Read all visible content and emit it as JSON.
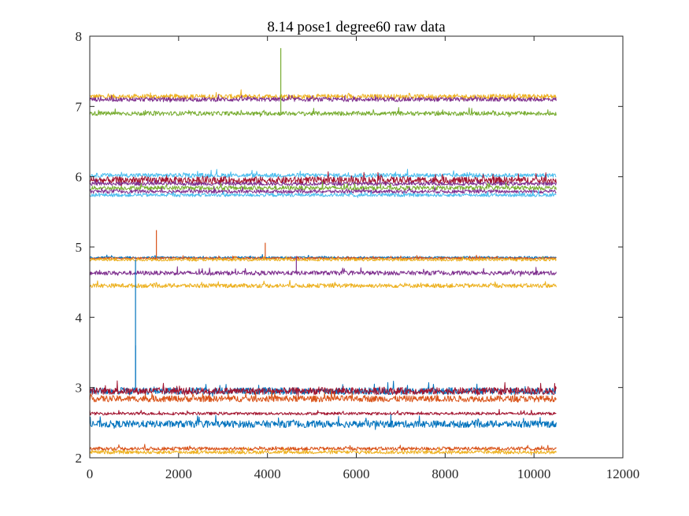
{
  "chart_data": {
    "type": "line",
    "title": "8.14 pose1  degree60 raw data",
    "xlabel": "",
    "ylabel": "",
    "xlim": [
      0,
      12000
    ],
    "ylim": [
      2,
      8
    ],
    "xticks": [
      0,
      2000,
      4000,
      6000,
      8000,
      10000,
      12000
    ],
    "yticks": [
      2,
      3,
      4,
      5,
      6,
      7,
      8
    ],
    "x_tick_labels": [
      "0",
      "2000",
      "4000",
      "6000",
      "8000",
      "10000",
      "12000"
    ],
    "y_tick_labels": [
      "2",
      "3",
      "4",
      "5",
      "6",
      "7",
      "8"
    ],
    "grid": false,
    "legend": "none",
    "x_range": [
      1,
      10500
    ],
    "series": [
      {
        "color": "#EDB120",
        "level": 7.14,
        "noise": 0.035
      },
      {
        "color": "#7E2F8E",
        "level": 7.1,
        "noise": 0.03
      },
      {
        "color": "#77AC30",
        "level": 6.9,
        "noise": 0.03,
        "spikes": [
          {
            "x": 4300,
            "y": 7.83
          }
        ]
      },
      {
        "color": "#4DBEEE",
        "level": 6.02,
        "noise": 0.03
      },
      {
        "color": "#A2142F",
        "level": 5.95,
        "noise": 0.05
      },
      {
        "color": "#7E2F8E",
        "level": 5.9,
        "noise": 0.025
      },
      {
        "color": "#77AC30",
        "level": 5.84,
        "noise": 0.03
      },
      {
        "color": "#7E2F8E",
        "level": 5.79,
        "noise": 0.025
      },
      {
        "color": "#4DBEEE",
        "level": 5.74,
        "noise": 0.025
      },
      {
        "color": "#0072BD",
        "level": 4.85,
        "noise": 0.015
      },
      {
        "color": "#D95319",
        "level": 4.84,
        "noise": 0.015,
        "spikes": [
          {
            "x": 1500,
            "y": 5.24
          },
          {
            "x": 3950,
            "y": 5.06
          }
        ]
      },
      {
        "color": "#EDB120",
        "level": 4.82,
        "noise": 0.02
      },
      {
        "color": "#7E2F8E",
        "level": 4.63,
        "noise": 0.03,
        "spikes": [
          {
            "x": 4650,
            "y": 4.87
          }
        ]
      },
      {
        "color": "#EDB120",
        "level": 4.45,
        "noise": 0.03
      },
      {
        "color": "#0072BD",
        "level": 2.95,
        "noise": 0.05,
        "spikes": [
          {
            "x": 1030,
            "y": 3.6
          },
          {
            "x": 1030,
            "y": 4.82
          }
        ]
      },
      {
        "color": "#A2142F",
        "level": 2.95,
        "noise": 0.05
      },
      {
        "color": "#D95319",
        "level": 2.84,
        "noise": 0.045
      },
      {
        "color": "#A2142F",
        "level": 2.63,
        "noise": 0.02
      },
      {
        "color": "#0072BD",
        "level": 2.48,
        "noise": 0.05
      },
      {
        "color": "#D95319",
        "level": 2.13,
        "noise": 0.025
      },
      {
        "color": "#EDB120",
        "level": 2.08,
        "noise": 0.025
      }
    ]
  }
}
